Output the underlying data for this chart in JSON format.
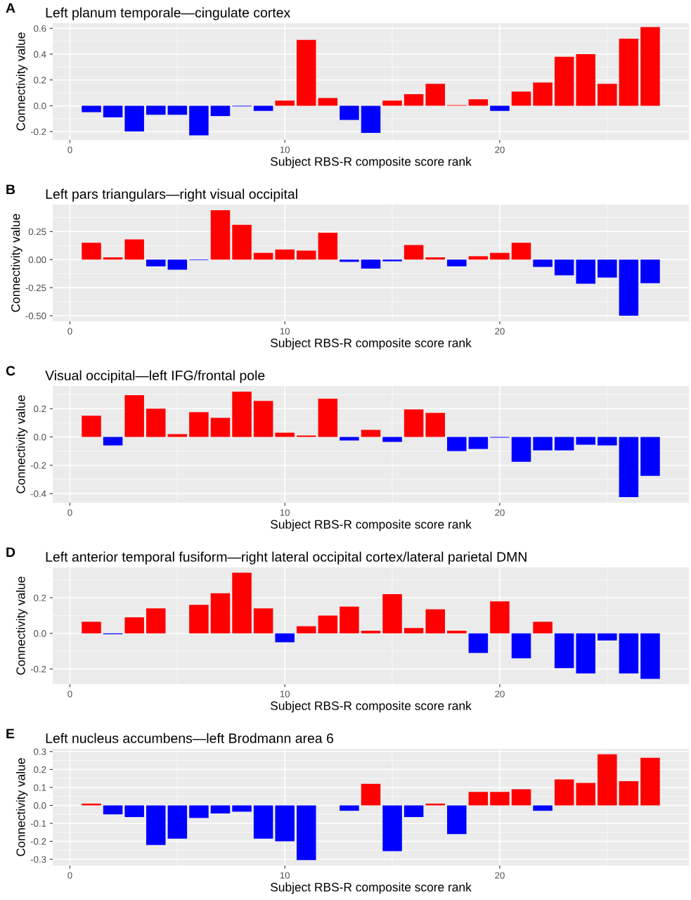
{
  "chart_data": [
    {
      "type": "bar",
      "title": "Left planum temporale—cingulate cortex",
      "annotations": [
        "A"
      ],
      "xlabel": "Subject RBS-R composite score rank",
      "ylabel": "Connectivity value",
      "x": [
        1,
        2,
        3,
        4,
        5,
        6,
        7,
        8,
        9,
        10,
        11,
        12,
        13,
        14,
        15,
        16,
        17,
        18,
        19,
        20,
        21,
        22,
        23,
        24,
        25,
        26,
        27
      ],
      "values": [
        -0.05,
        -0.09,
        -0.2,
        -0.07,
        -0.07,
        -0.23,
        -0.08,
        -0.005,
        -0.04,
        0.04,
        0.51,
        0.06,
        -0.11,
        -0.21,
        0.04,
        0.09,
        0.17,
        0.005,
        0.05,
        -0.04,
        0.11,
        0.18,
        0.38,
        0.4,
        0.17,
        0.52,
        0.61
      ],
      "colors": [
        "#0000ff",
        "#0000ff",
        "#0000ff",
        "#0000ff",
        "#0000ff",
        "#0000ff",
        "#0000ff",
        "#0000ff",
        "#0000ff",
        "#ff0000",
        "#ff0000",
        "#ff0000",
        "#0000ff",
        "#0000ff",
        "#ff0000",
        "#ff0000",
        "#ff0000",
        "#ff0000",
        "#ff0000",
        "#0000ff",
        "#ff0000",
        "#ff0000",
        "#ff0000",
        "#ff0000",
        "#ff0000",
        "#ff0000",
        "#ff0000"
      ],
      "xlim": [
        -0.8,
        28.8
      ],
      "xticks": [
        0,
        10,
        20
      ],
      "ylim": [
        -0.265,
        0.64
      ],
      "yticks": [
        {
          "value": -0.2,
          "label": "-0.2"
        },
        {
          "value": 0,
          "label": "0.0"
        },
        {
          "value": 0.2,
          "label": "0.2"
        },
        {
          "value": 0.4,
          "label": "0.4"
        },
        {
          "value": 0.6,
          "label": "0.6"
        }
      ],
      "grid": true
    },
    {
      "type": "bar",
      "title": "Left pars triangulars—right visual occipital",
      "annotations": [
        "B"
      ],
      "xlabel": "Subject RBS-R composite score rank",
      "ylabel": "Connectivity value",
      "x": [
        1,
        2,
        3,
        4,
        5,
        6,
        7,
        8,
        9,
        10,
        11,
        12,
        13,
        14,
        15,
        16,
        17,
        18,
        19,
        20,
        21,
        22,
        23,
        24,
        25,
        26,
        27
      ],
      "values": [
        0.15,
        0.02,
        0.18,
        -0.06,
        -0.09,
        -0.005,
        0.44,
        0.31,
        0.06,
        0.09,
        0.08,
        0.24,
        -0.02,
        -0.08,
        -0.015,
        0.13,
        0.02,
        -0.06,
        0.03,
        0.06,
        0.15,
        -0.065,
        -0.14,
        -0.215,
        -0.16,
        -0.5,
        -0.21
      ],
      "colors": [
        "#ff0000",
        "#ff0000",
        "#ff0000",
        "#0000ff",
        "#0000ff",
        "#0000ff",
        "#ff0000",
        "#ff0000",
        "#ff0000",
        "#ff0000",
        "#ff0000",
        "#ff0000",
        "#0000ff",
        "#0000ff",
        "#0000ff",
        "#ff0000",
        "#ff0000",
        "#0000ff",
        "#ff0000",
        "#ff0000",
        "#ff0000",
        "#0000ff",
        "#0000ff",
        "#0000ff",
        "#0000ff",
        "#0000ff",
        "#0000ff"
      ],
      "xlim": [
        -0.8,
        28.8
      ],
      "xticks": [
        0,
        10,
        20
      ],
      "ylim": [
        -0.55,
        0.49
      ],
      "yticks": [
        {
          "value": -0.5,
          "label": "-0.50"
        },
        {
          "value": -0.25,
          "label": "-0.25"
        },
        {
          "value": 0,
          "label": "0.00"
        },
        {
          "value": 0.25,
          "label": "0.25"
        }
      ],
      "grid": true
    },
    {
      "type": "bar",
      "title": "Visual occipital—left IFG/frontal pole",
      "annotations": [
        "C"
      ],
      "xlabel": "Subject RBS-R composite score rank",
      "ylabel": "Connectivity value",
      "x": [
        1,
        2,
        3,
        4,
        5,
        6,
        7,
        8,
        9,
        10,
        11,
        12,
        13,
        14,
        15,
        16,
        17,
        18,
        19,
        20,
        21,
        22,
        23,
        24,
        25,
        26,
        27
      ],
      "values": [
        0.15,
        -0.06,
        0.295,
        0.2,
        0.02,
        0.175,
        0.135,
        0.32,
        0.255,
        0.03,
        0.01,
        0.27,
        -0.025,
        0.05,
        -0.035,
        0.195,
        0.17,
        -0.1,
        -0.085,
        -0.005,
        -0.175,
        -0.095,
        -0.095,
        -0.055,
        -0.06,
        -0.425,
        -0.275
      ],
      "colors": [
        "#ff0000",
        "#0000ff",
        "#ff0000",
        "#ff0000",
        "#ff0000",
        "#ff0000",
        "#ff0000",
        "#ff0000",
        "#ff0000",
        "#ff0000",
        "#ff0000",
        "#ff0000",
        "#0000ff",
        "#ff0000",
        "#0000ff",
        "#ff0000",
        "#ff0000",
        "#0000ff",
        "#0000ff",
        "#0000ff",
        "#0000ff",
        "#0000ff",
        "#0000ff",
        "#0000ff",
        "#0000ff",
        "#0000ff",
        "#0000ff"
      ],
      "xlim": [
        -0.8,
        28.8
      ],
      "xticks": [
        0,
        10,
        20
      ],
      "ylim": [
        -0.465,
        0.36
      ],
      "yticks": [
        {
          "value": -0.4,
          "label": "-0.4"
        },
        {
          "value": -0.2,
          "label": "-0.2"
        },
        {
          "value": 0,
          "label": "0.0"
        },
        {
          "value": 0.2,
          "label": "0.2"
        }
      ],
      "grid": true
    },
    {
      "type": "bar",
      "title": "Left anterior temporal fusiform—right lateral occipital cortex/lateral parietal DMN",
      "annotations": [
        "D"
      ],
      "xlabel": "Subject RBS-R composite score rank",
      "ylabel": "Connectivity value",
      "x": [
        1,
        2,
        3,
        4,
        5,
        6,
        7,
        8,
        9,
        10,
        11,
        12,
        13,
        14,
        15,
        16,
        17,
        18,
        19,
        20,
        21,
        22,
        23,
        24,
        25,
        26,
        27
      ],
      "values": [
        0.065,
        -0.005,
        0.09,
        0.14,
        0,
        0.16,
        0.225,
        0.34,
        0.14,
        -0.05,
        0.04,
        0.1,
        0.15,
        0.015,
        0.22,
        0.03,
        0.135,
        0.015,
        -0.11,
        0.18,
        -0.14,
        0.065,
        -0.195,
        -0.225,
        -0.04,
        -0.225,
        -0.255
      ],
      "colors": [
        "#ff0000",
        "#0000ff",
        "#ff0000",
        "#ff0000",
        "#ff0000",
        "#ff0000",
        "#ff0000",
        "#ff0000",
        "#ff0000",
        "#0000ff",
        "#ff0000",
        "#ff0000",
        "#ff0000",
        "#ff0000",
        "#ff0000",
        "#ff0000",
        "#ff0000",
        "#ff0000",
        "#0000ff",
        "#ff0000",
        "#0000ff",
        "#ff0000",
        "#0000ff",
        "#0000ff",
        "#0000ff",
        "#0000ff",
        "#0000ff"
      ],
      "xlim": [
        -0.8,
        28.8
      ],
      "xticks": [
        0,
        10,
        20
      ],
      "ylim": [
        -0.285,
        0.37
      ],
      "yticks": [
        {
          "value": -0.2,
          "label": "-0.2"
        },
        {
          "value": 0,
          "label": "0.0"
        },
        {
          "value": 0.2,
          "label": "0.2"
        }
      ],
      "grid": true
    },
    {
      "type": "bar",
      "title": "Left nucleus accumbens—left Brodmann area 6",
      "annotations": [
        "E"
      ],
      "xlabel": "Subject RBS-R composite score rank",
      "ylabel": "Connectivity value",
      "x": [
        1,
        2,
        3,
        4,
        5,
        6,
        7,
        8,
        9,
        10,
        11,
        12,
        13,
        14,
        15,
        16,
        17,
        18,
        19,
        20,
        21,
        22,
        23,
        24,
        25,
        26,
        27
      ],
      "values": [
        0.01,
        -0.05,
        -0.065,
        -0.22,
        -0.185,
        -0.07,
        -0.045,
        -0.035,
        -0.185,
        -0.2,
        -0.305,
        0,
        -0.03,
        0.12,
        -0.255,
        -0.065,
        0.01,
        -0.16,
        0.075,
        0.075,
        0.09,
        -0.03,
        0.145,
        0.125,
        0.285,
        0.135,
        0.265
      ],
      "colors": [
        "#ff0000",
        "#0000ff",
        "#0000ff",
        "#0000ff",
        "#0000ff",
        "#0000ff",
        "#0000ff",
        "#0000ff",
        "#0000ff",
        "#0000ff",
        "#0000ff",
        "#ff0000",
        "#0000ff",
        "#ff0000",
        "#0000ff",
        "#0000ff",
        "#ff0000",
        "#0000ff",
        "#ff0000",
        "#ff0000",
        "#ff0000",
        "#0000ff",
        "#ff0000",
        "#ff0000",
        "#ff0000",
        "#ff0000",
        "#ff0000"
      ],
      "xlim": [
        -0.8,
        28.8
      ],
      "xticks": [
        0,
        10,
        20
      ],
      "ylim": [
        -0.335,
        0.315
      ],
      "yticks": [
        {
          "value": -0.3,
          "label": "-0.3"
        },
        {
          "value": -0.2,
          "label": "-0.2"
        },
        {
          "value": -0.1,
          "label": "-0.1"
        },
        {
          "value": 0,
          "label": "0.0"
        },
        {
          "value": 0.1,
          "label": "0.1"
        },
        {
          "value": 0.2,
          "label": "0.2"
        },
        {
          "value": 0.3,
          "label": "0.3"
        }
      ],
      "grid": true
    }
  ]
}
